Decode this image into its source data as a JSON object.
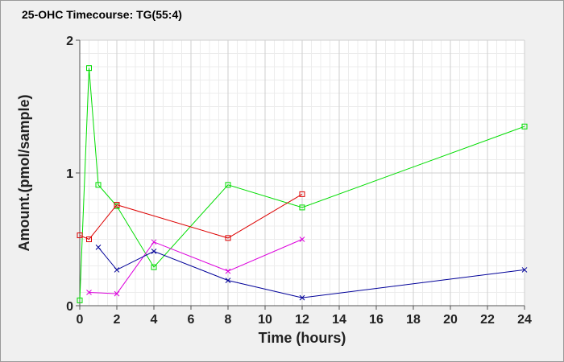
{
  "chart_data": {
    "type": "line",
    "title": "25-OHC Timecourse: TG(55:4)",
    "xlabel": "Time (hours)",
    "ylabel": "Amount.(pmol/sample)",
    "xlim": [
      0,
      24
    ],
    "ylim": [
      0,
      2
    ],
    "xticks": [
      0,
      2,
      4,
      6,
      8,
      10,
      12,
      14,
      16,
      18,
      20,
      22,
      24
    ],
    "yticks": [
      0,
      1,
      2
    ],
    "grid": true,
    "legend": "none",
    "series": [
      {
        "color": "#00dd00",
        "marker": "square",
        "points": [
          [
            0,
            0.04
          ],
          [
            0.5,
            1.79
          ],
          [
            1,
            0.91
          ],
          [
            2,
            0.75
          ],
          [
            4,
            0.29
          ],
          [
            8,
            0.91
          ],
          [
            12,
            0.74
          ],
          [
            24,
            1.35
          ]
        ]
      },
      {
        "color": "#dd0000",
        "marker": "square",
        "points": [
          [
            0,
            0.53
          ],
          [
            0.5,
            0.5
          ],
          [
            2,
            0.76
          ],
          [
            8,
            0.51
          ],
          [
            12,
            0.84
          ]
        ]
      },
      {
        "color": "#dd00dd",
        "marker": "x",
        "points": [
          [
            0.5,
            0.1
          ],
          [
            2,
            0.09
          ],
          [
            4,
            0.48
          ],
          [
            8,
            0.26
          ],
          [
            12,
            0.5
          ]
        ]
      },
      {
        "color": "#000099",
        "marker": "x",
        "points": [
          [
            1,
            0.44
          ],
          [
            2,
            0.27
          ],
          [
            4,
            0.41
          ],
          [
            8,
            0.19
          ],
          [
            12,
            0.06
          ],
          [
            24,
            0.27
          ]
        ]
      }
    ]
  }
}
